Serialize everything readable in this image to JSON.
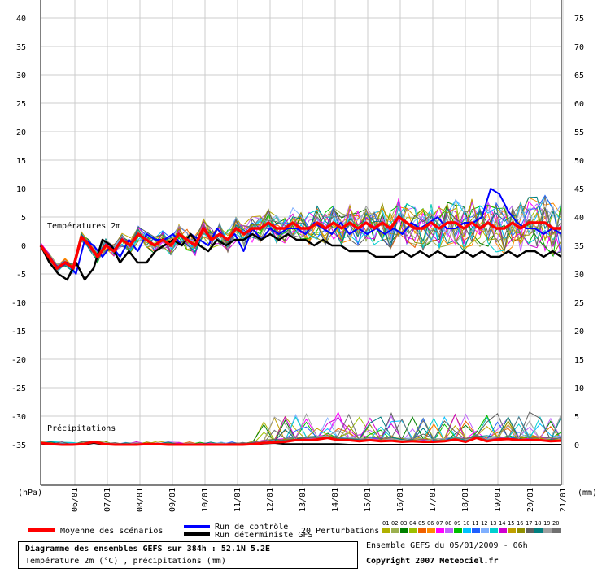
{
  "chart_data": {
    "type": "line",
    "x_dates": [
      "06/01",
      "07/01",
      "08/01",
      "09/01",
      "10/01",
      "11/01",
      "12/01",
      "13/01",
      "14/01",
      "15/01",
      "16/01",
      "17/01",
      "18/01",
      "19/01",
      "20/01",
      "21/01"
    ],
    "left_axis": {
      "label": "(hPa)",
      "ticks": [
        40,
        35,
        30,
        25,
        20,
        15,
        10,
        5,
        0,
        -5,
        -10,
        -15,
        -20,
        -25,
        -30,
        -35
      ]
    },
    "right_axis": {
      "label": "(mm)",
      "ticks": [
        75,
        70,
        65,
        60,
        55,
        50,
        45,
        40,
        35,
        30,
        25,
        20,
        15,
        10,
        5,
        0
      ]
    },
    "annotations": {
      "temp": "Températures 2m",
      "precip": "Précipitations"
    },
    "temperature": {
      "mean": [
        0,
        -2,
        -4,
        -3,
        -4,
        1.5,
        0,
        -2,
        0,
        -1,
        1,
        0,
        2,
        1,
        0,
        1,
        0,
        2,
        1,
        0,
        3,
        1,
        2,
        1,
        3,
        2,
        3,
        3,
        4,
        3,
        3,
        4,
        3,
        3,
        4,
        3,
        4,
        3,
        4,
        3,
        4,
        3,
        4,
        3,
        5,
        4,
        3,
        3,
        4,
        3,
        4,
        4,
        3,
        4,
        3,
        4,
        3,
        3,
        4,
        3,
        4,
        4,
        4,
        3,
        3
      ],
      "deterministic": [
        0,
        -3,
        -5,
        -6,
        -3,
        -6,
        -4,
        1,
        0,
        -3,
        -1,
        -3,
        -3,
        -1,
        0,
        1,
        0,
        2,
        0,
        -1,
        1,
        0,
        1,
        1,
        2,
        1,
        2,
        1,
        2,
        1,
        1,
        0,
        1,
        0,
        0,
        -1,
        -1,
        -1,
        -2,
        -2,
        -2,
        -1,
        -2,
        -1,
        -2,
        -1,
        -2,
        -2,
        -1,
        -2,
        -1,
        -2,
        -2,
        -1,
        -2,
        -1,
        -1,
        -2,
        -1,
        -2
      ],
      "control": [
        0,
        -2,
        -4,
        -3,
        -5,
        1,
        0,
        -2,
        0,
        -2,
        1,
        -1,
        2,
        1,
        1,
        2,
        0,
        2,
        1,
        0,
        3,
        1,
        2,
        -1,
        3,
        1,
        3,
        2,
        3,
        3,
        2,
        4,
        3,
        2,
        4,
        2,
        3,
        2,
        3,
        2,
        3,
        2,
        4,
        3,
        4,
        5,
        3,
        3,
        4,
        4,
        5,
        10,
        9,
        6,
        4,
        3,
        3,
        2,
        3,
        2
      ]
    },
    "precipitation": {
      "mean": [
        0.3,
        0.1,
        0,
        0,
        0.1,
        0.5,
        0.1,
        0,
        0,
        0,
        0.1,
        0.1,
        0,
        0,
        0,
        0,
        0,
        0,
        0,
        0,
        0.1,
        0.3,
        0.4,
        0.5,
        0.8,
        0.8,
        0.9,
        1.2,
        0.8,
        0.8,
        0.6,
        0.8,
        0.6,
        0.7,
        0.5,
        0.6,
        0.5,
        0.5,
        0.6,
        0.9,
        0.5,
        1.2,
        0.6,
        0.9,
        1.0,
        0.8,
        0.8,
        0.8,
        0.6,
        0.7
      ],
      "deterministic": [
        0.2,
        0,
        0,
        0,
        0,
        0.3,
        0,
        0,
        0,
        0,
        0,
        0,
        0,
        0,
        0,
        0,
        0,
        0,
        0,
        0,
        0,
        0.2,
        0.3,
        0.1,
        0.1,
        0.1,
        0.1,
        0.1,
        0.1,
        0,
        0,
        0,
        0,
        0,
        0,
        0,
        0,
        0,
        0,
        0,
        0,
        0,
        0,
        0,
        0,
        0,
        0,
        0,
        0,
        0
      ]
    },
    "legend": {
      "mean": "Moyenne des scénarios",
      "control": "Run de contrôle",
      "deterministic": "Run déterministe GFS",
      "perturbations": "20 Perturbations"
    },
    "perturbation_ids": [
      "01",
      "02",
      "03",
      "04",
      "05",
      "06",
      "07",
      "08",
      "09",
      "10",
      "11",
      "12",
      "13",
      "14",
      "15",
      "16",
      "17",
      "18",
      "19",
      "20"
    ],
    "perturbation_colors": [
      "#b0b000",
      "#9cb050",
      "#008000",
      "#9cc000",
      "#f06000",
      "#ff8c00",
      "#ff00ff",
      "#c060ff",
      "#00c000",
      "#00c0ff",
      "#2060ff",
      "#80b0ff",
      "#00d0d0",
      "#d000d0",
      "#c0a000",
      "#909000",
      "#606060",
      "#008080",
      "#a0a0a0",
      "#707070"
    ]
  },
  "info": {
    "title": "Diagramme des ensembles GEFS sur 384h : 52.1N 5.2E",
    "subtitle": "Température 2m (°C) , précipitations (mm)",
    "ensemble": "Ensemble GEFS du 05/01/2009 - 06h",
    "copyright": "Copyright 2007 Meteociel.fr"
  }
}
